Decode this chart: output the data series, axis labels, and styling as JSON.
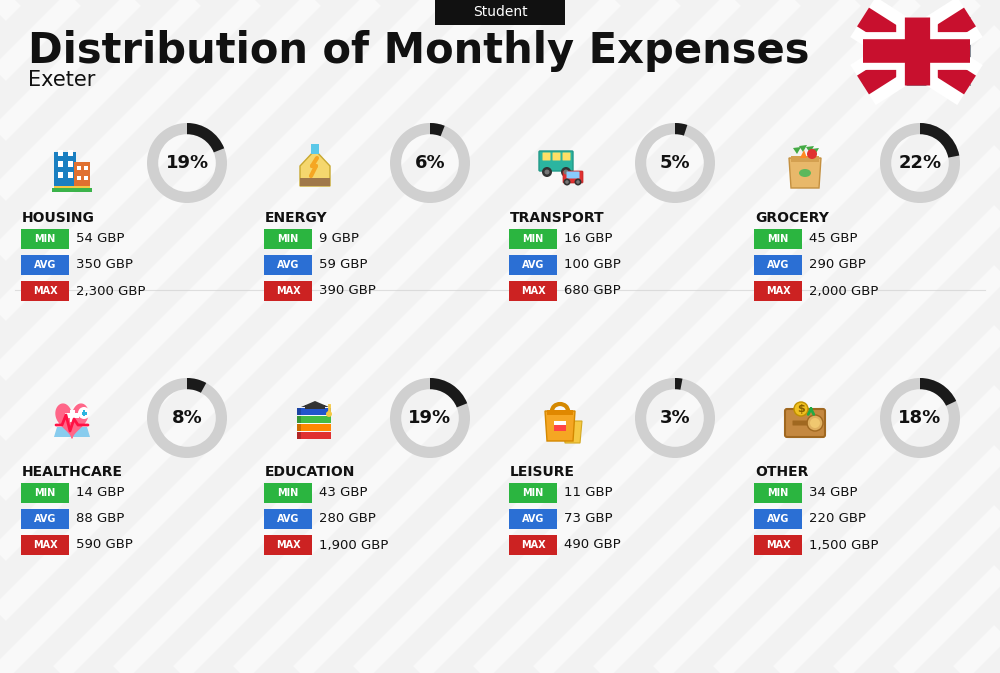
{
  "title": "Distribution of Monthly Expenses",
  "subtitle": "Student",
  "location": "Exeter",
  "background_color": "#f2f2f2",
  "title_color": "#111111",
  "categories": [
    {
      "name": "HOUSING",
      "percent": 19,
      "min": "54 GBP",
      "avg": "350 GBP",
      "max": "2,300 GBP",
      "row": 0,
      "col": 0
    },
    {
      "name": "ENERGY",
      "percent": 6,
      "min": "9 GBP",
      "avg": "59 GBP",
      "max": "390 GBP",
      "row": 0,
      "col": 1
    },
    {
      "name": "TRANSPORT",
      "percent": 5,
      "min": "16 GBP",
      "avg": "100 GBP",
      "max": "680 GBP",
      "row": 0,
      "col": 2
    },
    {
      "name": "GROCERY",
      "percent": 22,
      "min": "45 GBP",
      "avg": "290 GBP",
      "max": "2,000 GBP",
      "row": 0,
      "col": 3
    },
    {
      "name": "HEALTHCARE",
      "percent": 8,
      "min": "14 GBP",
      "avg": "88 GBP",
      "max": "590 GBP",
      "row": 1,
      "col": 0
    },
    {
      "name": "EDUCATION",
      "percent": 19,
      "min": "43 GBP",
      "avg": "280 GBP",
      "max": "1,900 GBP",
      "row": 1,
      "col": 1
    },
    {
      "name": "LEISURE",
      "percent": 3,
      "min": "11 GBP",
      "avg": "73 GBP",
      "max": "490 GBP",
      "row": 1,
      "col": 2
    },
    {
      "name": "OTHER",
      "percent": 18,
      "min": "34 GBP",
      "avg": "220 GBP",
      "max": "1,500 GBP",
      "row": 1,
      "col": 3
    }
  ],
  "min_color": "#2bb540",
  "avg_color": "#2b6fd4",
  "max_color": "#cc2222",
  "stripe_color": "#e8e8e8",
  "donut_bg_color": "#d0d0d0",
  "donut_fg_color": "#1a1a1a"
}
